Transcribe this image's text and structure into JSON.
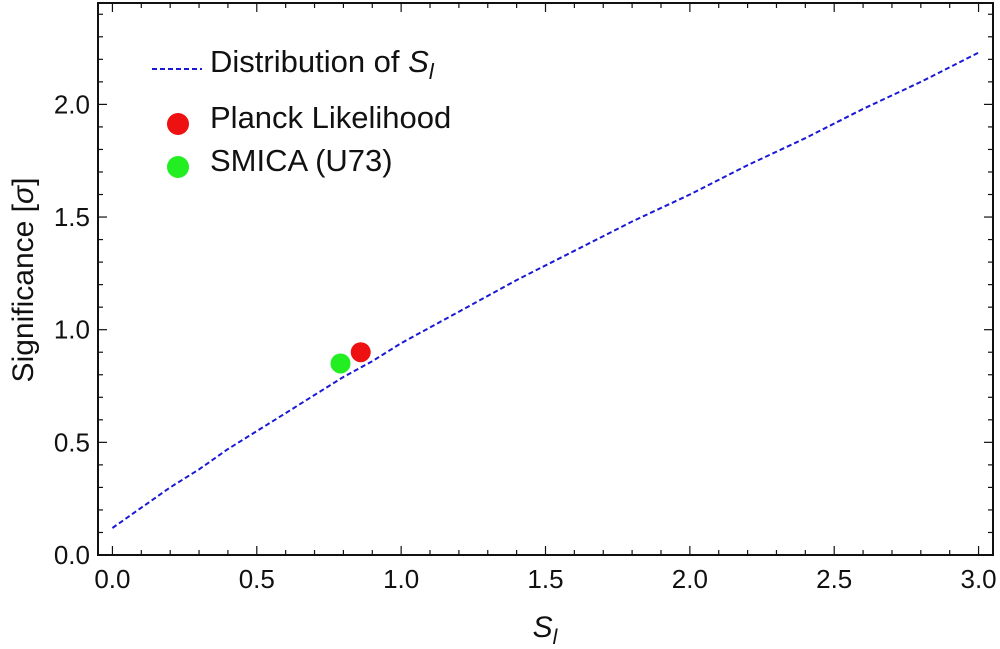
{
  "chart_data": {
    "type": "line",
    "title": "",
    "xlabel_main": "S",
    "xlabel_sub": "l",
    "ylabel_prefix": "Significance [",
    "ylabel_symbol": "σ",
    "ylabel_suffix": "]",
    "xlim": [
      -0.05,
      3.05
    ],
    "ylim": [
      0.0,
      2.45
    ],
    "x_ticks": [
      0.0,
      0.5,
      1.0,
      1.5,
      2.0,
      2.5,
      3.0
    ],
    "x_tick_labels": [
      "0.0",
      "0.5",
      "1.0",
      "1.5",
      "2.0",
      "2.5",
      "3.0"
    ],
    "y_ticks": [
      0.0,
      0.5,
      1.0,
      1.5,
      2.0
    ],
    "y_tick_labels": [
      "0.0",
      "0.5",
      "1.0",
      "1.5",
      "2.0"
    ],
    "grid": false,
    "legend_position": "top-left",
    "series": [
      {
        "name": "Distribution of S_l",
        "legend_label_main": "Distribution of ",
        "legend_label_sym": "S",
        "legend_label_sub": "l",
        "kind": "line",
        "style": "dashed",
        "color": "#1a1ad6",
        "x": [
          0.0,
          0.1,
          0.2,
          0.3,
          0.4,
          0.5,
          0.6,
          0.7,
          0.8,
          0.9,
          1.0,
          1.2,
          1.4,
          1.6,
          1.8,
          2.0,
          2.2,
          2.4,
          2.6,
          2.8,
          3.0
        ],
        "y": [
          0.12,
          0.21,
          0.3,
          0.38,
          0.47,
          0.55,
          0.63,
          0.71,
          0.79,
          0.86,
          0.94,
          1.08,
          1.22,
          1.35,
          1.48,
          1.6,
          1.73,
          1.85,
          1.98,
          2.1,
          2.23
        ]
      },
      {
        "name": "Planck Likelihood",
        "legend_label_main": "Planck Likelihood",
        "kind": "point",
        "color": "#ee1111",
        "x": [
          0.86
        ],
        "y": [
          0.9
        ]
      },
      {
        "name": "SMICA (U73)",
        "legend_label_main": "SMICA (U73)",
        "kind": "point",
        "color": "#22ee22",
        "x": [
          0.79
        ],
        "y": [
          0.85
        ]
      }
    ]
  }
}
